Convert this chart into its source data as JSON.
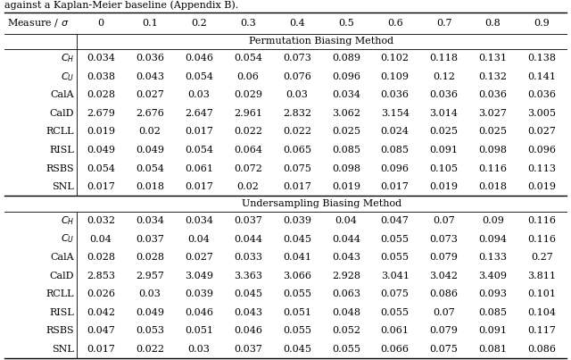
{
  "title_text": "against a Kaplan-Meier baseline (Appendix B).",
  "header": [
    "Measure / σ",
    "0",
    "0.1",
    "0.2",
    "0.3",
    "0.4",
    "0.5",
    "0.6",
    "0.7",
    "0.8",
    "0.9"
  ],
  "section1_title": "Permutation Biasing Method",
  "section2_title": "Undersampling Biasing Method",
  "perm_data_str": [
    [
      "0.034",
      "0.036",
      "0.046",
      "0.054",
      "0.073",
      "0.089",
      "0.102",
      "0.118",
      "0.131",
      "0.138"
    ],
    [
      "0.038",
      "0.043",
      "0.054",
      "0.06",
      "0.076",
      "0.096",
      "0.109",
      "0.12",
      "0.132",
      "0.141"
    ],
    [
      "0.028",
      "0.027",
      "0.03",
      "0.029",
      "0.03",
      "0.034",
      "0.036",
      "0.036",
      "0.036",
      "0.036"
    ],
    [
      "2.679",
      "2.676",
      "2.647",
      "2.961",
      "2.832",
      "3.062",
      "3.154",
      "3.014",
      "3.027",
      "3.005"
    ],
    [
      "0.019",
      "0.02",
      "0.017",
      "0.022",
      "0.022",
      "0.025",
      "0.024",
      "0.025",
      "0.025",
      "0.027"
    ],
    [
      "0.049",
      "0.049",
      "0.054",
      "0.064",
      "0.065",
      "0.085",
      "0.085",
      "0.091",
      "0.098",
      "0.096"
    ],
    [
      "0.054",
      "0.054",
      "0.061",
      "0.072",
      "0.075",
      "0.098",
      "0.096",
      "0.105",
      "0.116",
      "0.113"
    ],
    [
      "0.017",
      "0.018",
      "0.017",
      "0.02",
      "0.017",
      "0.019",
      "0.017",
      "0.019",
      "0.018",
      "0.019"
    ]
  ],
  "under_data_str": [
    [
      "0.032",
      "0.034",
      "0.034",
      "0.037",
      "0.039",
      "0.04",
      "0.047",
      "0.07",
      "0.09",
      "0.116"
    ],
    [
      "0.04",
      "0.037",
      "0.04",
      "0.044",
      "0.045",
      "0.044",
      "0.055",
      "0.073",
      "0.094",
      "0.116"
    ],
    [
      "0.028",
      "0.028",
      "0.027",
      "0.033",
      "0.041",
      "0.043",
      "0.055",
      "0.079",
      "0.133",
      "0.27"
    ],
    [
      "2.853",
      "2.957",
      "3.049",
      "3.363",
      "3.066",
      "2.928",
      "3.041",
      "3.042",
      "3.409",
      "3.811"
    ],
    [
      "0.026",
      "0.03",
      "0.039",
      "0.045",
      "0.055",
      "0.063",
      "0.075",
      "0.086",
      "0.093",
      "0.101"
    ],
    [
      "0.042",
      "0.049",
      "0.046",
      "0.043",
      "0.051",
      "0.048",
      "0.055",
      "0.07",
      "0.085",
      "0.104"
    ],
    [
      "0.047",
      "0.053",
      "0.051",
      "0.046",
      "0.055",
      "0.052",
      "0.061",
      "0.079",
      "0.091",
      "0.117"
    ],
    [
      "0.017",
      "0.022",
      "0.03",
      "0.037",
      "0.045",
      "0.055",
      "0.066",
      "0.075",
      "0.081",
      "0.086"
    ]
  ],
  "bg_color": "#ffffff",
  "line_color": "#000000",
  "text_color": "#000000",
  "font_size": 8.0,
  "title_font_size": 8.0
}
